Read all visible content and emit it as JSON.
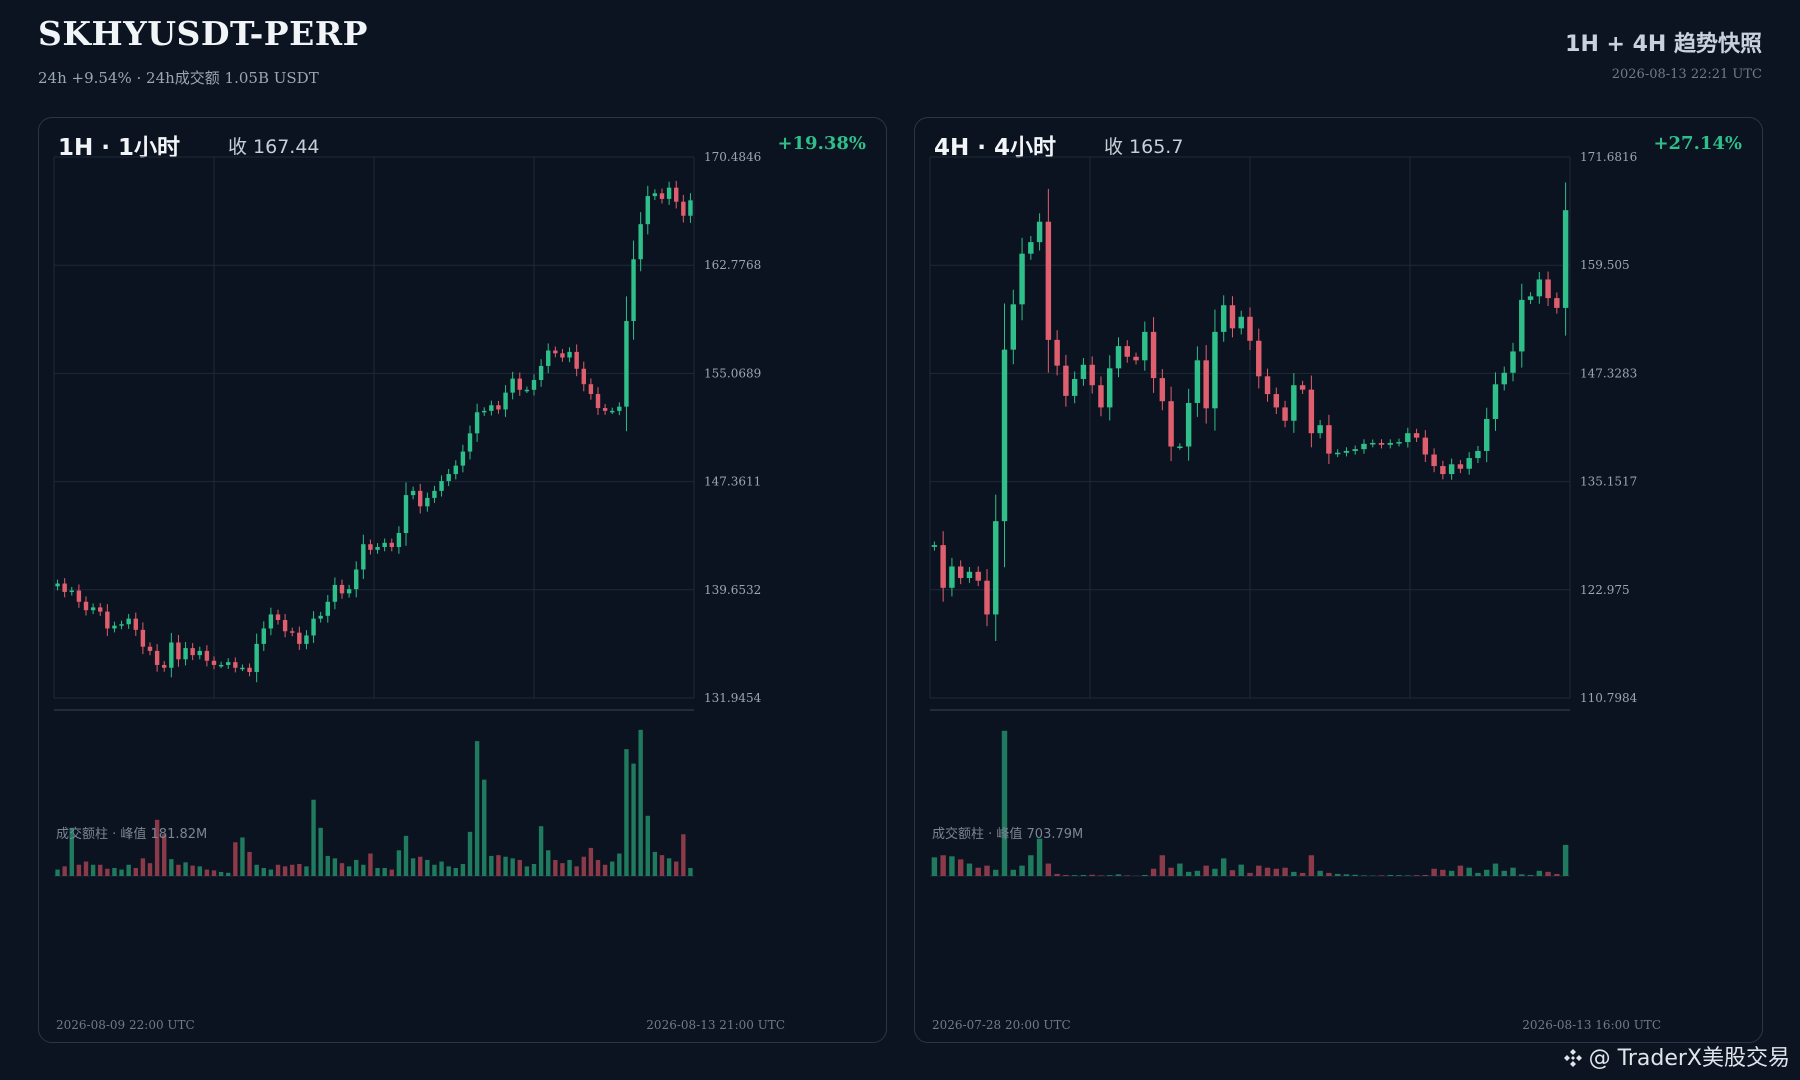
{
  "header": {
    "title": "SKHYUSDT-PERP",
    "subtitle": "24h +9.54% · 24h成交额 1.05B USDT",
    "right_title": "1H + 4H 趋势快照",
    "timestamp": "2026-08-13 22:21 UTC"
  },
  "watermark": "@ TraderX美股交易",
  "colors": {
    "up": "#2fbf8a",
    "down": "#e05f6e",
    "grid": "#1e2937",
    "axis": "#9aa6b4"
  },
  "panels": [
    {
      "title": "1H · 1小时",
      "close_label": "收 167.44",
      "change": "+19.38%",
      "vol_label": "成交额柱 · 峰值 181.82M",
      "date_start": "2026-08-09 22:00 UTC",
      "date_end": "2026-08-13 21:00 UTC"
    },
    {
      "title": "4H · 4小时",
      "close_label": "收 165.7",
      "change": "+27.14%",
      "vol_label": "成交额柱 · 峰值 703.79M",
      "date_start": "2026-07-28 20:00 UTC",
      "date_end": "2026-08-13 16:00 UTC"
    }
  ],
  "chart_data": [
    {
      "type": "candlestick",
      "title": "1H · 1小时",
      "ylim": [
        131.9454,
        170.4846
      ],
      "yticks": [
        "170.4846",
        "162.7768",
        "155.0689",
        "147.3611",
        "139.6532",
        "131.9454"
      ],
      "vol_peak": 181.82,
      "vol_unit": "M",
      "close": [
        140.1,
        139.5,
        139.6,
        138.8,
        138.2,
        138.4,
        138.1,
        136.9,
        137.1,
        137.2,
        137.6,
        136.8,
        135.6,
        135.3,
        134.3,
        134.1,
        135.9,
        134.7,
        135.5,
        135.0,
        135.3,
        134.6,
        134.3,
        134.3,
        134.5,
        134.1,
        134.1,
        133.8,
        135.8,
        136.9,
        137.9,
        137.5,
        136.7,
        136.6,
        135.8,
        136.4,
        137.6,
        137.8,
        138.8,
        140.0,
        139.4,
        139.7,
        141.1,
        142.9,
        142.5,
        142.7,
        143.0,
        142.7,
        143.7,
        146.4,
        146.7,
        145.6,
        146.2,
        146.7,
        147.4,
        147.9,
        148.5,
        149.5,
        150.8,
        152.3,
        152.4,
        152.8,
        152.5,
        153.7,
        154.7,
        153.9,
        153.9,
        154.6,
        155.6,
        156.7,
        156.5,
        156.2,
        156.6,
        155.4,
        154.3,
        153.6,
        152.6,
        152.4,
        152.4,
        152.7,
        158.8,
        163.2,
        165.7,
        167.7,
        167.9,
        167.5,
        168.3,
        167.3,
        166.3,
        167.4
      ],
      "volume": [
        8,
        12,
        60,
        14,
        18,
        14,
        14,
        9,
        10,
        8,
        14,
        10,
        22,
        16,
        70,
        52,
        21,
        14,
        17,
        13,
        12,
        8,
        7,
        5,
        4,
        42,
        48,
        30,
        14,
        10,
        8,
        14,
        12,
        14,
        15,
        12,
        95,
        60,
        25,
        22,
        16,
        12,
        20,
        14,
        28,
        10,
        10,
        8,
        32,
        50,
        22,
        24,
        20,
        14,
        18,
        12,
        10,
        15,
        55,
        168,
        120,
        25,
        26,
        24,
        22,
        20,
        12,
        15,
        62,
        32,
        20,
        16,
        20,
        12,
        24,
        35,
        20,
        14,
        18,
        28,
        158,
        140,
        182,
        75,
        30,
        26,
        22,
        18,
        52,
        10
      ]
    },
    {
      "type": "candlestick",
      "title": "4H · 4小时",
      "ylim": [
        110.7984,
        171.6816
      ],
      "yticks": [
        "171.6816",
        "159.505",
        "147.3283",
        "135.1517",
        "122.975",
        "110.7984"
      ],
      "vol_peak": 703.79,
      "vol_unit": "M",
      "close": [
        128.0,
        123.2,
        125.6,
        124.3,
        125.0,
        124.0,
        120.2,
        130.7,
        150.0,
        155.1,
        160.8,
        162.1,
        164.4,
        151.1,
        148.2,
        144.8,
        146.7,
        148.3,
        146.0,
        143.5,
        147.9,
        150.4,
        149.2,
        148.8,
        152.0,
        146.8,
        144.2,
        139.1,
        139.1,
        144.0,
        148.8,
        143.4,
        152.0,
        155.0,
        152.4,
        153.7,
        151.0,
        147.0,
        145.0,
        143.5,
        142.0,
        146.0,
        145.5,
        140.6,
        141.5,
        138.3,
        138.4,
        138.6,
        138.8,
        139.4,
        139.5,
        139.3,
        139.5,
        139.6,
        140.6,
        140.1,
        138.2,
        136.9,
        136.0,
        137.1,
        136.6,
        137.8,
        138.6,
        142.2,
        146.1,
        147.4,
        149.8,
        155.6,
        156.0,
        157.9,
        155.8,
        154.7,
        165.7
      ],
      "volume": [
        90,
        100,
        95,
        80,
        60,
        40,
        50,
        30,
        700,
        30,
        50,
        100,
        180,
        60,
        10,
        5,
        4,
        5,
        6,
        3,
        4,
        8,
        3,
        1,
        5,
        35,
        100,
        40,
        60,
        20,
        25,
        50,
        35,
        85,
        28,
        55,
        15,
        50,
        40,
        35,
        40,
        20,
        15,
        100,
        25,
        15,
        10,
        8,
        6,
        3,
        2,
        3,
        5,
        4,
        3,
        4,
        5,
        35,
        30,
        25,
        50,
        40,
        15,
        30,
        60,
        25,
        40,
        8,
        5,
        25,
        20,
        10,
        150
      ]
    }
  ]
}
